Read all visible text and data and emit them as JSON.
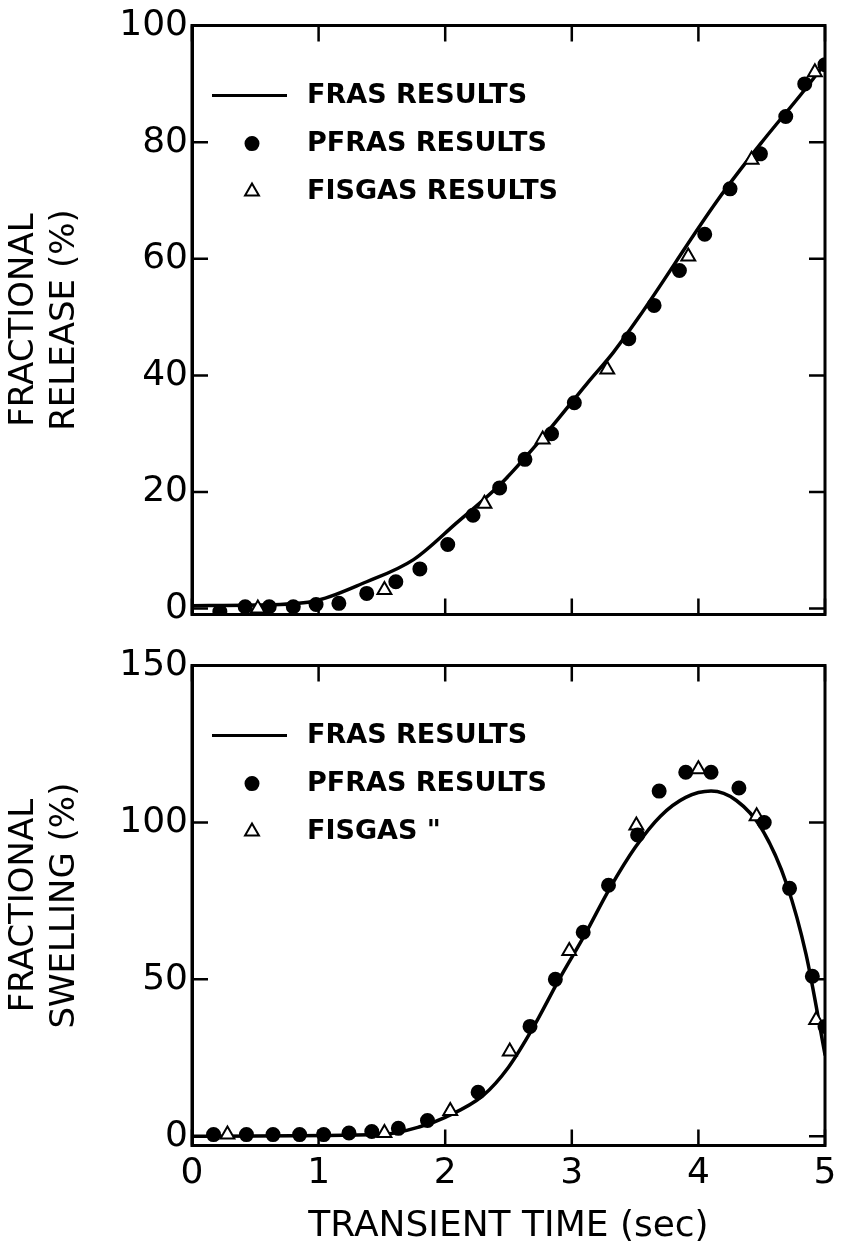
{
  "chart_data": [
    {
      "type": "line",
      "ylabel": "FRACTIONAL RELEASE (%)",
      "xlim": [
        0,
        5
      ],
      "xticks": [
        {
          "value": 0,
          "label": null
        },
        {
          "value": 1,
          "label": null
        },
        {
          "value": 2,
          "label": null
        },
        {
          "value": 3,
          "label": null
        },
        {
          "value": 4,
          "label": null
        },
        {
          "value": 5,
          "label": null
        }
      ],
      "ylim": [
        -1,
        100
      ],
      "yticks": [
        0,
        20,
        40,
        60,
        80,
        100
      ],
      "tick_labels": "y",
      "grid": false,
      "legend": "top left",
      "series": [
        {
          "name": "FRAS RESULTS",
          "type": "line",
          "marker": "none",
          "color": "#000000",
          "x": [
            0,
            0.5,
            0.95,
            1.38,
            1.75,
            2.09,
            2.44,
            2.78,
            3.12,
            3.33,
            3.53,
            4.15,
            4.49,
            4.84,
            5.0
          ],
          "values": [
            0.5,
            0.6,
            1.2,
            4.6,
            8.4,
            14.7,
            21.4,
            29.6,
            38.6,
            44,
            50,
            70,
            79.7,
            89,
            93.5
          ]
        },
        {
          "name": "PFRAS RESULTS",
          "type": "scatter",
          "marker": "circle",
          "color": "#000000",
          "x": [
            0.22,
            0.42,
            0.61,
            0.8,
            0.98,
            1.16,
            1.38,
            1.61,
            1.8,
            2.02,
            2.22,
            2.43,
            2.63,
            2.84,
            3.02,
            3.45,
            3.65,
            3.85,
            4.05,
            4.25,
            4.49,
            4.69,
            4.84,
            5.0
          ],
          "values": [
            -0.5,
            0.3,
            0.3,
            0.3,
            0.7,
            0.9,
            2.6,
            4.6,
            6.8,
            11,
            16,
            20.7,
            25.6,
            30,
            35.3,
            46.3,
            52,
            58,
            64.2,
            72,
            78,
            84.4,
            90,
            93.3
          ]
        },
        {
          "name": "FISGAS RESULTS",
          "type": "scatter",
          "marker": "triangle",
          "color": "#000000",
          "x": [
            0.52,
            1.52,
            2.31,
            2.77,
            3.28,
            3.92,
            4.42,
            4.92
          ],
          "values": [
            0,
            3.2,
            18,
            29,
            41,
            60.4,
            77,
            92
          ]
        }
      ]
    },
    {
      "type": "line",
      "ylabel": "FRACTIONAL SWELLING (%)",
      "xlabel": "TRANSIENT TIME (sec)",
      "xlim": [
        0,
        5
      ],
      "xticks": [
        0,
        1,
        2,
        3,
        4,
        5
      ],
      "ylim": [
        -3,
        150
      ],
      "yticks": [
        0,
        50,
        100,
        150
      ],
      "grid": false,
      "legend": "top left",
      "series": [
        {
          "name": "FRAS RESULTS",
          "type": "line",
          "marker": "none",
          "color": "#000000",
          "x": [
            0,
            1.5,
            1.8,
            2,
            2.3,
            2.5,
            2.7,
            2.9,
            3.1,
            3.3,
            3.5,
            3.7,
            3.9,
            4.1,
            4.3,
            4.5,
            4.7,
            4.85,
            5.0
          ],
          "values": [
            0,
            0.5,
            3,
            6,
            13,
            22,
            35,
            50,
            64,
            79,
            92,
            102,
            108,
            110,
            107,
            98,
            80,
            58,
            26
          ]
        },
        {
          "name": "PFRAS RESULTS",
          "type": "scatter",
          "marker": "circle",
          "color": "#000000",
          "x": [
            0.17,
            0.43,
            0.64,
            0.85,
            1.04,
            1.24,
            1.42,
            1.63,
            1.86,
            2.26,
            2.67,
            2.87,
            3.09,
            3.29,
            3.52,
            3.69,
            3.9,
            4.1,
            4.32,
            4.52,
            4.72,
            4.9,
            5.0
          ],
          "values": [
            0.5,
            0.5,
            0.5,
            0.5,
            0.5,
            1,
            1.5,
            2.5,
            5,
            14,
            35,
            50,
            65,
            80,
            96,
            110,
            116,
            116,
            111,
            100,
            79,
            51,
            35
          ]
        },
        {
          "name": "FISGAS \"",
          "type": "scatter",
          "marker": "triangle",
          "color": "#000000",
          "x": [
            0.28,
            1.52,
            2.04,
            2.51,
            2.98,
            3.51,
            4.0,
            4.46,
            4.93
          ],
          "values": [
            0.5,
            1,
            8,
            27,
            59,
            99,
            117,
            102,
            37
          ]
        }
      ]
    }
  ]
}
